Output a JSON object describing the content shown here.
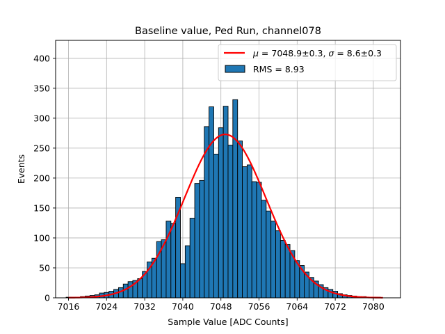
{
  "chart_data": {
    "type": "bar",
    "title": "Baseline value, Ped Run, channel078",
    "xlabel": "Sample Value [ADC Counts]",
    "ylabel": "Events",
    "xlim": [
      7013.3,
      7085.7
    ],
    "ylim": [
      0,
      430
    ],
    "xticks": [
      7016,
      7024,
      7032,
      7040,
      7048,
      7056,
      7064,
      7072,
      7080
    ],
    "yticks": [
      0,
      50,
      100,
      150,
      200,
      250,
      300,
      350,
      400
    ],
    "grid": true,
    "legend_position": "top-right",
    "histogram": {
      "name": "RMS = 8.93",
      "color": "#1f77b4",
      "edgecolor": "#000000",
      "bin_width": 1,
      "bin_centers": [
        7016,
        7017,
        7018,
        7019,
        7020,
        7021,
        7022,
        7023,
        7024,
        7025,
        7026,
        7027,
        7028,
        7029,
        7030,
        7031,
        7032,
        7033,
        7034,
        7035,
        7036,
        7037,
        7038,
        7039,
        7040,
        7041,
        7042,
        7043,
        7044,
        7045,
        7046,
        7047,
        7048,
        7049,
        7050,
        7051,
        7052,
        7053,
        7054,
        7055,
        7056,
        7057,
        7058,
        7059,
        7060,
        7061,
        7062,
        7063,
        7064,
        7065,
        7066,
        7067,
        7068,
        7069,
        7070,
        7071,
        7072,
        7073,
        7074,
        7075,
        7076,
        7077,
        7078,
        7079,
        7080,
        7081,
        7082
      ],
      "counts": [
        1,
        1,
        1,
        2,
        3,
        4,
        5,
        8,
        9,
        11,
        14,
        17,
        23,
        27,
        29,
        32,
        44,
        60,
        66,
        94,
        97,
        128,
        124,
        168,
        57,
        87,
        133,
        191,
        196,
        286,
        319,
        240,
        284,
        320,
        255,
        331,
        262,
        219,
        222,
        194,
        193,
        163,
        145,
        128,
        112,
        96,
        89,
        79,
        62,
        54,
        43,
        34,
        28,
        22,
        17,
        14,
        11,
        7,
        5,
        4,
        3,
        2,
        2,
        1,
        1,
        1,
        0
      ]
    },
    "series": [
      {
        "name": "$\\mu = 7048.9$±0.3, $\\sigma = 8.6$±0.3",
        "label_display": {
          "mu_symbol": "μ",
          "mu_text": " = 7048.9±0.3, ",
          "sigma_symbol": "σ",
          "sigma_text": " = 8.6±0.3"
        },
        "type": "line",
        "color": "#ff0000",
        "gaussian": {
          "mu": 7048.9,
          "sigma": 8.6,
          "amplitude": 273
        },
        "x_range": [
          7016,
          7082
        ]
      }
    ]
  }
}
